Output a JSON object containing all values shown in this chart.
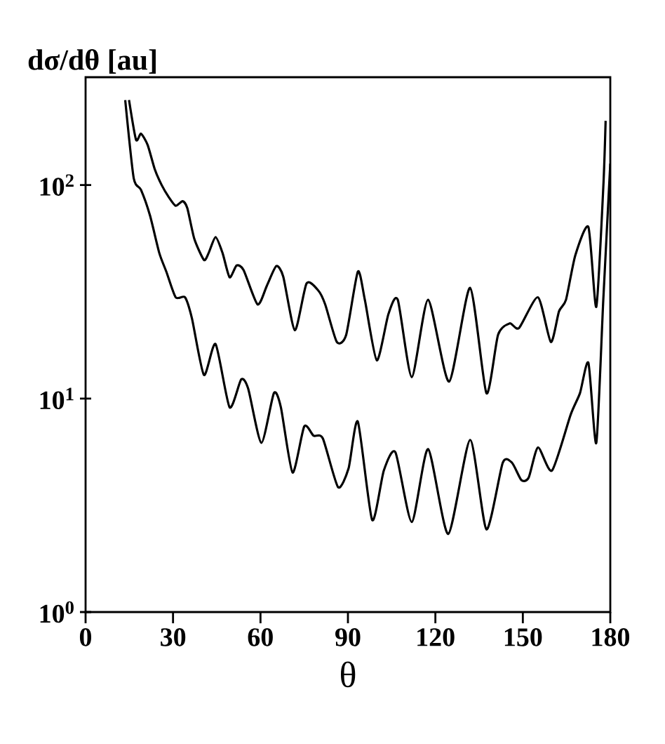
{
  "chart_data": {
    "type": "line",
    "xlabel": "θ",
    "ylabel": "**dσ/dθ [au]**",
    "log": "y",
    "line_style": "solid",
    "xlim": [
      0,
      180
    ],
    "ylim": [
      1,
      320
    ],
    "xticks": [
      0,
      30,
      60,
      90,
      120,
      150,
      180
    ],
    "yticks": [
      {
        "value": 1,
        "label": "10$^{0}$"
      },
      {
        "value": 10,
        "label": "10$^{1}$"
      },
      {
        "value": 100,
        "label": "10$^{2}$"
      }
    ],
    "series": [
      {
        "color": "#000000",
        "x": [
          14.9,
          17.3,
          19.0,
          21.3,
          23.7,
          26.1,
          28.5,
          30.9,
          33.3,
          34.9,
          37.3,
          40.6,
          42.2,
          44.6,
          47.0,
          49.4,
          51.8,
          54.2,
          59.0,
          62.2,
          65.4,
          67.8,
          71.8,
          75.8,
          79.8,
          82.2,
          86.2,
          89.4,
          93.4,
          95.8,
          99.9,
          103.9,
          107.1,
          111.9,
          117.5,
          124.7,
          131.9,
          137.5,
          141.5,
          145.5,
          148.7,
          155.2,
          159.6,
          162.4,
          164.8,
          168.0,
          172.5,
          175.2,
          177.6,
          178.4
        ],
        "values": [
          250,
          163,
          174,
          154,
          119,
          100,
          88,
          80,
          84,
          78,
          56,
          44.6,
          48,
          57,
          48,
          37,
          42,
          40,
          27.6,
          33.8,
          41.7,
          37.3,
          20.9,
          34.6,
          32.1,
          27.6,
          18.4,
          19.9,
          39.3,
          29,
          15.1,
          24.9,
          29,
          12.6,
          29,
          12.0,
          33,
          10.6,
          19.9,
          22.5,
          21.4,
          29.8,
          18.4,
          25.6,
          29,
          46.9,
          63.5,
          26.9,
          97.5,
          200
        ]
      },
      {
        "color": "#000000",
        "x": [
          13.6,
          16.5,
          19.0,
          22.1,
          25.3,
          27.7,
          30.9,
          34.1,
          36.5,
          40.6,
          44.6,
          49.4,
          53.4,
          55.8,
          60.3,
          64.6,
          67.0,
          71.0,
          75.0,
          78.2,
          81.4,
          86.6,
          90.2,
          93.4,
          98.3,
          102.3,
          106.3,
          111.9,
          117.5,
          124.4,
          131.9,
          137.5,
          143.1,
          146.3,
          149.5,
          152.0,
          155.2,
          160.0,
          166.4,
          169.6,
          172.5,
          175.2,
          177.6,
          180
        ],
        "values": [
          250,
          108,
          95,
          72,
          48,
          39.3,
          29.8,
          29.8,
          23.7,
          12.9,
          18,
          9.1,
          12.3,
          11.1,
          6.2,
          10.6,
          9.1,
          4.5,
          7.4,
          6.7,
          6.5,
          3.85,
          4.7,
          7.8,
          2.7,
          4.6,
          5.6,
          2.64,
          5.8,
          2.32,
          6.4,
          2.44,
          5.0,
          5.0,
          4.15,
          4.26,
          5.9,
          4.6,
          8.4,
          10.6,
          14.7,
          6.2,
          29,
          126
        ]
      }
    ]
  }
}
